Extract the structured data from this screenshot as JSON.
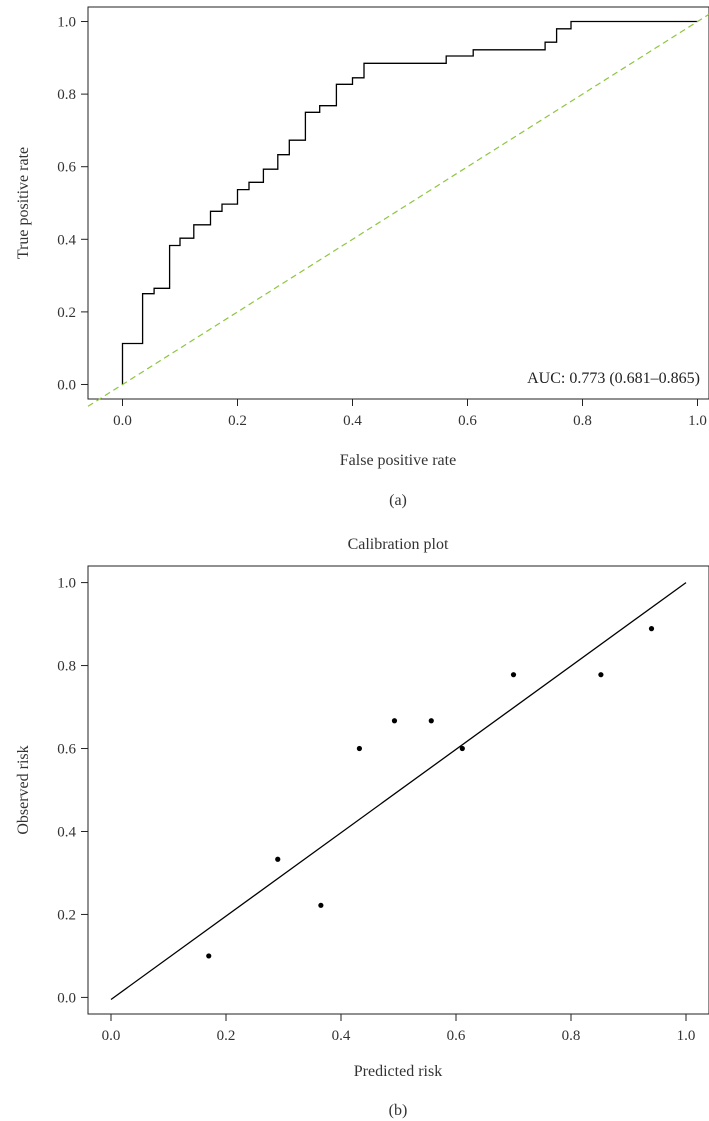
{
  "chart_data": [
    {
      "type": "line",
      "title": "",
      "panel_label": "(a)",
      "xlabel": "False positive rate",
      "ylabel": "True positive rate",
      "xlim": [
        -0.06,
        1.02
      ],
      "ylim": [
        -0.04,
        1.04
      ],
      "xticks": [
        "0.0",
        "0.2",
        "0.4",
        "0.6",
        "0.8",
        "1.0"
      ],
      "yticks": [
        "0.0",
        "0.2",
        "0.4",
        "0.6",
        "0.8",
        "1.0"
      ],
      "annotation": "AUC: 0.773 (0.681–0.865)",
      "grid": false,
      "series": [
        {
          "kind": "step",
          "color": "#000000",
          "x": [
            0.0,
            0.0,
            0.035,
            0.035,
            0.055,
            0.055,
            0.082,
            0.082,
            0.1,
            0.1,
            0.124,
            0.124,
            0.153,
            0.153,
            0.173,
            0.173,
            0.2,
            0.2,
            0.22,
            0.22,
            0.245,
            0.245,
            0.27,
            0.27,
            0.29,
            0.29,
            0.318,
            0.318,
            0.343,
            0.343,
            0.372,
            0.372,
            0.4,
            0.4,
            0.42,
            0.42,
            0.563,
            0.563,
            0.61,
            0.61,
            0.735,
            0.735,
            0.755,
            0.755,
            0.78,
            0.78,
            1.0
          ],
          "y": [
            0.0,
            0.113,
            0.113,
            0.25,
            0.25,
            0.265,
            0.265,
            0.383,
            0.383,
            0.403,
            0.403,
            0.44,
            0.44,
            0.477,
            0.477,
            0.497,
            0.497,
            0.537,
            0.537,
            0.557,
            0.557,
            0.593,
            0.593,
            0.633,
            0.633,
            0.673,
            0.673,
            0.75,
            0.75,
            0.768,
            0.768,
            0.827,
            0.827,
            0.845,
            0.845,
            0.885,
            0.885,
            0.905,
            0.905,
            0.922,
            0.922,
            0.943,
            0.943,
            0.98,
            0.98,
            1.0,
            1.0
          ]
        },
        {
          "kind": "dashed",
          "color": "#8cc63e",
          "x": [
            -0.06,
            1.02
          ],
          "y": [
            -0.06,
            1.02
          ]
        }
      ]
    },
    {
      "type": "scatter",
      "title": "Calibration plot",
      "panel_label": "(b)",
      "xlabel": "Predicted risk",
      "ylabel": "Observed risk",
      "xlim": [
        -0.04,
        1.04
      ],
      "ylim": [
        -0.04,
        1.04
      ],
      "xticks": [
        "0.0",
        "0.2",
        "0.4",
        "0.6",
        "0.8",
        "1.0"
      ],
      "yticks": [
        "0.0",
        "0.2",
        "0.4",
        "0.6",
        "0.8",
        "1.0"
      ],
      "grid": false,
      "points": {
        "x": [
          0.17,
          0.29,
          0.365,
          0.432,
          0.493,
          0.557,
          0.611,
          0.7,
          0.852,
          0.94
        ],
        "y": [
          0.1,
          0.333,
          0.222,
          0.6,
          0.667,
          0.667,
          0.6,
          0.778,
          0.778,
          0.889
        ]
      },
      "fit_line": {
        "x": [
          0.0,
          1.0
        ],
        "y": [
          -0.005,
          1.0
        ]
      }
    }
  ]
}
